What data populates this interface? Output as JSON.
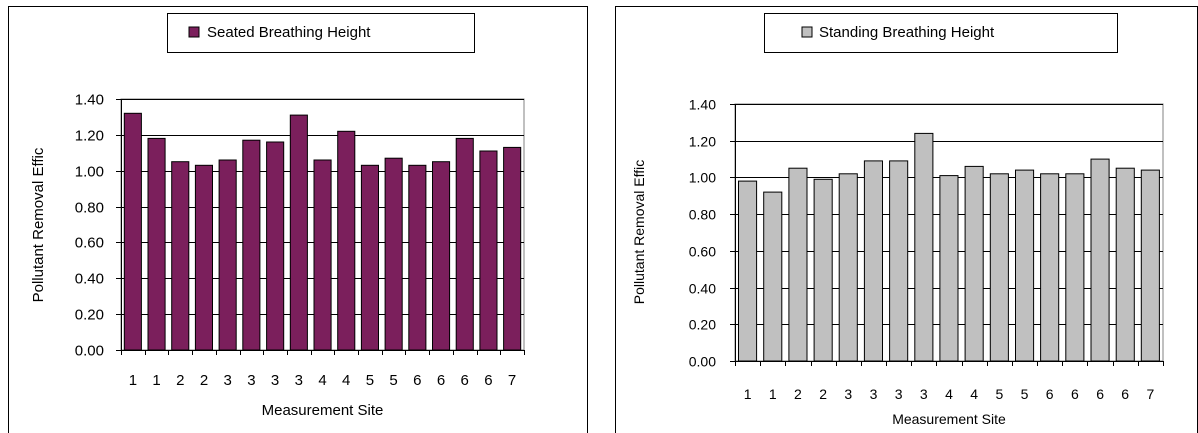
{
  "chart_data": [
    {
      "type": "bar",
      "categories": [
        "1",
        "1",
        "2",
        "2",
        "3",
        "3",
        "3",
        "3",
        "4",
        "4",
        "5",
        "5",
        "6",
        "6",
        "6",
        "6",
        "7"
      ],
      "series": [
        {
          "name": "Seated Breathing Height",
          "values": [
            1.32,
            1.18,
            1.05,
            1.03,
            1.06,
            1.17,
            1.16,
            1.31,
            1.06,
            1.22,
            1.03,
            1.07,
            1.03,
            1.05,
            1.18,
            1.11,
            1.13
          ]
        }
      ],
      "xlabel": "Measurement Site",
      "ylabel": "Pollutant Removal Effic",
      "ylim": [
        0,
        1.4
      ],
      "yticks": [
        "0.00",
        "0.20",
        "0.40",
        "0.60",
        "0.80",
        "1.00",
        "1.20",
        "1.40"
      ],
      "grid": true,
      "legend": "top-center",
      "color": "#7b1f5c"
    },
    {
      "type": "bar",
      "categories": [
        "1",
        "1",
        "2",
        "2",
        "3",
        "3",
        "3",
        "3",
        "4",
        "4",
        "5",
        "5",
        "6",
        "6",
        "6",
        "6",
        "7"
      ],
      "series": [
        {
          "name": "Standing Breathing Height",
          "values": [
            0.98,
            0.92,
            1.05,
            0.99,
            1.02,
            1.09,
            1.09,
            1.24,
            1.01,
            1.06,
            1.02,
            1.04,
            1.02,
            1.02,
            1.1,
            1.05,
            1.04
          ]
        }
      ],
      "xlabel": "Measurement Site",
      "ylabel": "Pollutant Removal Effic",
      "ylim": [
        0,
        1.4
      ],
      "yticks": [
        "0.00",
        "0.20",
        "0.40",
        "0.60",
        "0.80",
        "1.00",
        "1.20",
        "1.40"
      ],
      "grid": true,
      "legend": "top-center",
      "color": "#c0c0c0"
    }
  ]
}
